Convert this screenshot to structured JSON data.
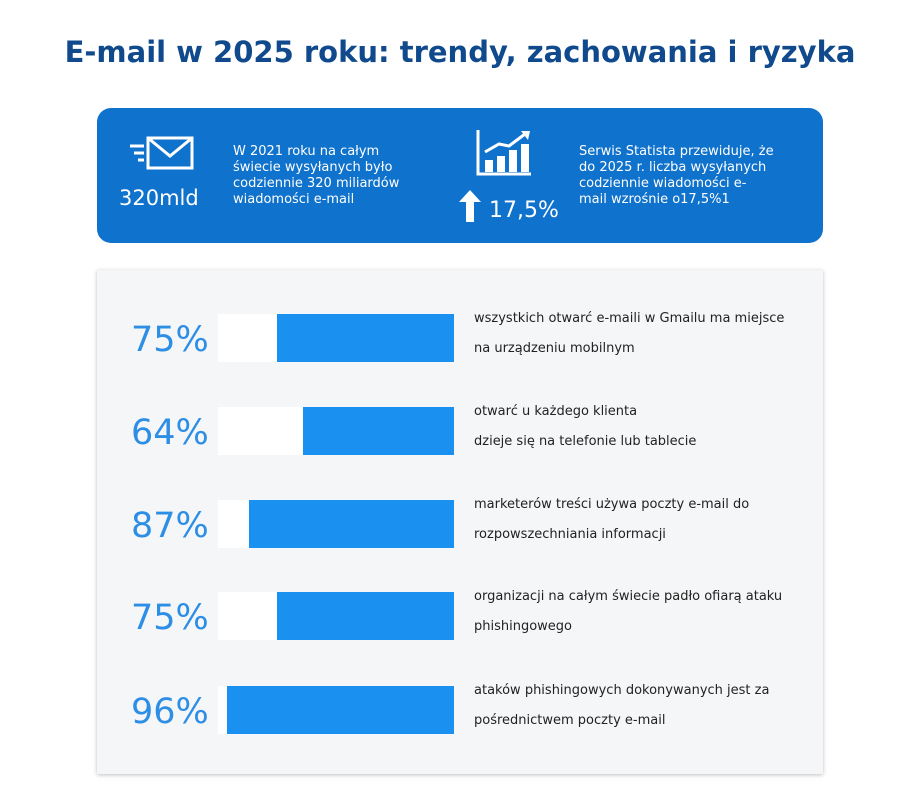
{
  "title": "E-mail w 2025 roku: trendy, zachowania i ryzyka",
  "banner": {
    "stat1": {
      "icon": "envelope-icon",
      "value": "320mld",
      "text": [
        "W 2021 roku na całym",
        "świecie wysyłanych było",
        "codziennie 320 miliardów",
        "wiadomości e-mail"
      ]
    },
    "stat2": {
      "icon": "bar-chart-growth-icon",
      "arrow_icon": "arrow-up-icon",
      "value": "17,5%",
      "text": [
        "Serwis Statista przewiduje, że",
        "do 2025 r. liczba wysyłanych",
        "codziennie wiadomości e-",
        "mail wzrośnie o17,5%1"
      ]
    },
    "color": "#0f72cc"
  },
  "chart_data": {
    "type": "bar",
    "orientation": "horizontal",
    "unit": "%",
    "ylim": [
      0,
      100
    ],
    "bar_color": "#1a91f0",
    "label_color": "#2d8ee6",
    "rows": [
      {
        "value": 75,
        "label": "75%",
        "desc": [
          "wszystkich otwarć e-maili w Gmailu ma miejsce",
          "na urządzeniu mobilnym"
        ]
      },
      {
        "value": 64,
        "label": "64%",
        "desc": [
          "otwarć u każdego klienta",
          "dzieje się na telefonie lub tablecie"
        ]
      },
      {
        "value": 87,
        "label": "87%",
        "desc": [
          "marketerów treści używa poczty e-mail do",
          "rozpowszechniania informacji"
        ]
      },
      {
        "value": 75,
        "label": "75%",
        "desc": [
          "organizacji na całym świecie padło ofiarą ataku",
          "phishingowego"
        ]
      },
      {
        "value": 96,
        "label": "96%",
        "desc": [
          "ataków phishingowych dokonywanych jest za",
          "pośrednictwem poczty e-mail"
        ]
      }
    ]
  }
}
